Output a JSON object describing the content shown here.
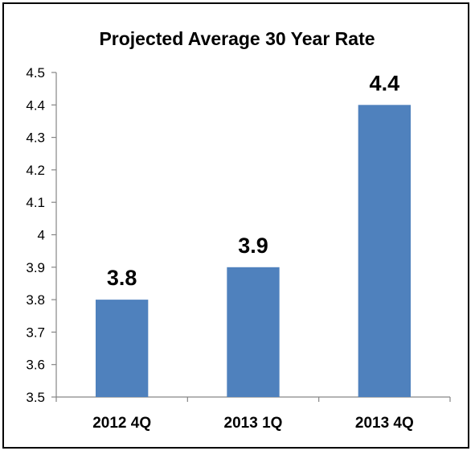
{
  "chart_data": {
    "type": "bar",
    "title": "Projected Average 30 Year Rate",
    "categories": [
      "2012 4Q",
      "2013 1Q",
      "2013 4Q"
    ],
    "values": [
      3.8,
      3.9,
      4.4
    ],
    "data_labels": [
      "3.8",
      "3.9",
      "4.4"
    ],
    "ylim": [
      3.5,
      4.5
    ],
    "yticks": [
      3.5,
      3.6,
      3.7,
      3.8,
      3.9,
      4,
      4.1,
      4.2,
      4.3,
      4.4,
      4.5
    ],
    "ytick_labels": [
      "3.5",
      "3.6",
      "3.7",
      "3.8",
      "3.9",
      "4",
      "4.1",
      "4.2",
      "4.3",
      "4.4",
      "4.5"
    ],
    "xlabel": "",
    "ylabel": "",
    "grid": false,
    "legend": "none",
    "bar_color": "#4F81BD",
    "axis_color": "#868686"
  }
}
